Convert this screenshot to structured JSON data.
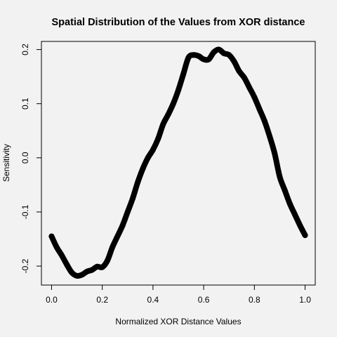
{
  "chart_data": {
    "type": "line",
    "title": "Spatial Distribution of the Values from XOR distance",
    "xlabel": "Normalized XOR Distance Values",
    "ylabel": "Sensitivity",
    "xlim": [
      -0.04,
      1.04
    ],
    "ylim": [
      -0.235,
      0.215
    ],
    "xticks": [
      0.0,
      0.2,
      0.4,
      0.6,
      0.8,
      1.0
    ],
    "xtick_labels": [
      "0.0",
      "0.2",
      "0.4",
      "0.6",
      "0.8",
      "1.0"
    ],
    "yticks": [
      -0.2,
      -0.1,
      0.0,
      0.1,
      0.2
    ],
    "ytick_labels": [
      "-0.2",
      "-0.1",
      "0.0",
      "0.1",
      "0.2"
    ],
    "grid": false,
    "line_color": "#000000",
    "series": [
      {
        "x": [
          0.0,
          0.02,
          0.04,
          0.06,
          0.08,
          0.1,
          0.12,
          0.14,
          0.16,
          0.18,
          0.2,
          0.22,
          0.24,
          0.26,
          0.28,
          0.3,
          0.32,
          0.34,
          0.36,
          0.38,
          0.4,
          0.42,
          0.44,
          0.46,
          0.48,
          0.5,
          0.52,
          0.54,
          0.56,
          0.58,
          0.6,
          0.62,
          0.64,
          0.66,
          0.68,
          0.7,
          0.72,
          0.74,
          0.76,
          0.78,
          0.8,
          0.82,
          0.84,
          0.86,
          0.88,
          0.9,
          0.92,
          0.94,
          0.96,
          0.98,
          1.0
        ],
        "y": [
          -0.145,
          -0.165,
          -0.18,
          -0.197,
          -0.212,
          -0.218,
          -0.216,
          -0.21,
          -0.207,
          -0.201,
          -0.202,
          -0.19,
          -0.165,
          -0.145,
          -0.125,
          -0.1,
          -0.075,
          -0.045,
          -0.02,
          0.0,
          0.015,
          0.035,
          0.062,
          0.08,
          0.1,
          0.125,
          0.155,
          0.185,
          0.19,
          0.188,
          0.182,
          0.182,
          0.195,
          0.2,
          0.193,
          0.19,
          0.178,
          0.16,
          0.148,
          0.13,
          0.112,
          0.09,
          0.068,
          0.04,
          0.008,
          -0.035,
          -0.06,
          -0.085,
          -0.105,
          -0.125,
          -0.143
        ]
      }
    ]
  }
}
